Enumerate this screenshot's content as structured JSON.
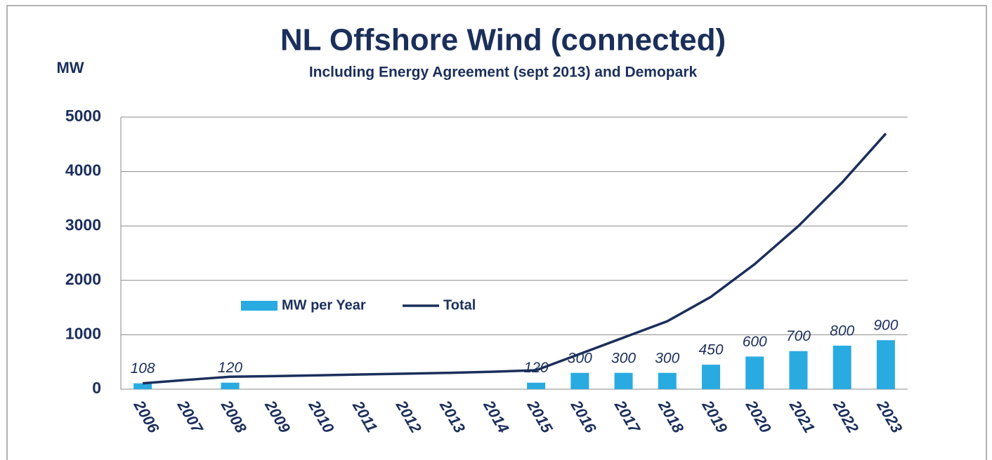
{
  "chart_data": {
    "type": "bar_line",
    "title": "NL Offshore Wind (connected)",
    "subtitle": "Including Energy Agreement (sept 2013) and Demopark",
    "y_label": "MW",
    "categories": [
      "2006",
      "2007",
      "2008",
      "2009",
      "2010",
      "2011",
      "2012",
      "2013",
      "2014",
      "2015",
      "2016",
      "2017",
      "2018",
      "2019",
      "2020",
      "2021",
      "2022",
      "2023"
    ],
    "series": [
      {
        "name": "MW per Year",
        "color": "#29abe2",
        "type": "bar",
        "values": [
          108,
          null,
          120,
          null,
          null,
          null,
          null,
          null,
          null,
          120,
          300,
          300,
          300,
          450,
          600,
          700,
          800,
          900
        ]
      },
      {
        "name": "Total",
        "color": "#1b2f5b",
        "type": "line",
        "values": [
          108,
          170,
          228,
          240,
          255,
          270,
          285,
          300,
          320,
          348,
          648,
          948,
          1248,
          1698,
          2298,
          2998,
          3798,
          4698
        ]
      }
    ],
    "ylim": [
      0,
      5000
    ],
    "yticks": [
      0,
      1000,
      2000,
      3000,
      4000,
      5000
    ],
    "grid": true,
    "legend": "left"
  }
}
